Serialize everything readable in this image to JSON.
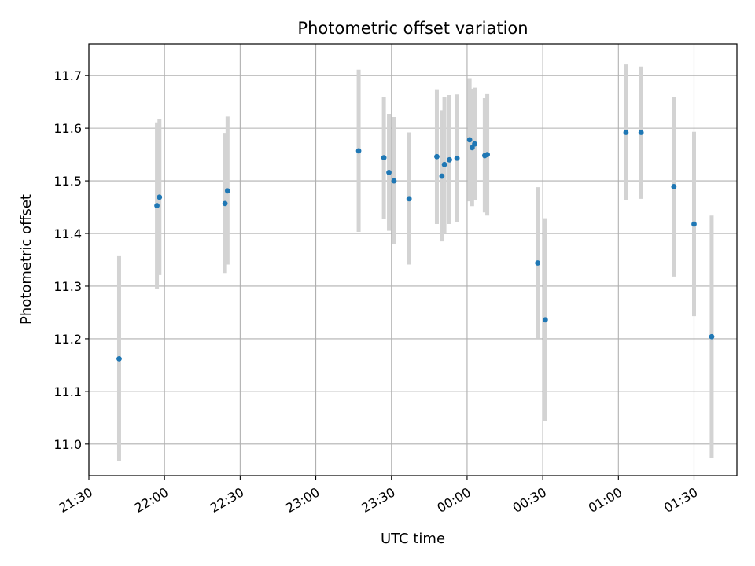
{
  "chart_data": {
    "type": "scatter",
    "title": "Photometric offset variation",
    "xlabel": "UTC time",
    "ylabel": "Photometric offset",
    "grid": true,
    "ylim": [
      10.94,
      11.76
    ],
    "xlim": [
      "21:30",
      "01:47"
    ],
    "x_ticks": [
      "21:30",
      "22:00",
      "22:30",
      "23:00",
      "23:30",
      "00:00",
      "00:30",
      "01:00",
      "01:30"
    ],
    "y_ticks": [
      11.0,
      11.1,
      11.2,
      11.3,
      11.4,
      11.5,
      11.6,
      11.7
    ],
    "y_tick_labels": [
      "11.0",
      "11.1",
      "11.2",
      "11.3",
      "11.4",
      "11.5",
      "11.6",
      "11.7"
    ],
    "colors": {
      "points": "#1f77b4",
      "errorbars": "#d3d3d3",
      "grid": "#b0b0b0"
    },
    "series": [
      {
        "points": [
          {
            "time": "21:42",
            "y": 11.162,
            "err_low": 10.967,
            "err_high": 11.357
          },
          {
            "time": "21:57",
            "y": 11.453,
            "err_low": 11.295,
            "err_high": 11.611
          },
          {
            "time": "21:58",
            "y": 11.469,
            "err_low": 11.321,
            "err_high": 11.618
          },
          {
            "time": "22:24",
            "y": 11.457,
            "err_low": 11.325,
            "err_high": 11.591
          },
          {
            "time": "22:25",
            "y": 11.481,
            "err_low": 11.341,
            "err_high": 11.622
          },
          {
            "time": "23:17",
            "y": 11.557,
            "err_low": 11.403,
            "err_high": 11.711
          },
          {
            "time": "23:27",
            "y": 11.544,
            "err_low": 11.428,
            "err_high": 11.659
          },
          {
            "time": "23:29",
            "y": 11.516,
            "err_low": 11.405,
            "err_high": 11.627
          },
          {
            "time": "23:31",
            "y": 11.5,
            "err_low": 11.38,
            "err_high": 11.621
          },
          {
            "time": "23:37",
            "y": 11.466,
            "err_low": 11.341,
            "err_high": 11.592
          },
          {
            "time": "23:48",
            "y": 11.546,
            "err_low": 11.418,
            "err_high": 11.674
          },
          {
            "time": "23:50",
            "y": 11.509,
            "err_low": 11.385,
            "err_high": 11.634
          },
          {
            "time": "23:51",
            "y": 11.531,
            "err_low": 11.401,
            "err_high": 11.66
          },
          {
            "time": "23:53",
            "y": 11.54,
            "err_low": 11.418,
            "err_high": 11.663
          },
          {
            "time": "23:56",
            "y": 11.543,
            "err_low": 11.422,
            "err_high": 11.664
          },
          {
            "time": "00:01",
            "y": 11.578,
            "err_low": 11.461,
            "err_high": 11.695
          },
          {
            "time": "00:02",
            "y": 11.563,
            "err_low": 11.452,
            "err_high": 11.675
          },
          {
            "time": "00:03",
            "y": 11.57,
            "err_low": 11.463,
            "err_high": 11.677
          },
          {
            "time": "00:07",
            "y": 11.548,
            "err_low": 11.44,
            "err_high": 11.657
          },
          {
            "time": "00:08",
            "y": 11.55,
            "err_low": 11.434,
            "err_high": 11.666
          },
          {
            "time": "00:28",
            "y": 11.344,
            "err_low": 11.2,
            "err_high": 11.488
          },
          {
            "time": "00:31",
            "y": 11.236,
            "err_low": 11.043,
            "err_high": 11.429
          },
          {
            "time": "01:03",
            "y": 11.592,
            "err_low": 11.463,
            "err_high": 11.721
          },
          {
            "time": "01:09",
            "y": 11.592,
            "err_low": 11.466,
            "err_high": 11.717
          },
          {
            "time": "01:22",
            "y": 11.489,
            "err_low": 11.318,
            "err_high": 11.66
          },
          {
            "time": "01:30",
            "y": 11.418,
            "err_low": 11.243,
            "err_high": 11.593
          },
          {
            "time": "01:37",
            "y": 11.204,
            "err_low": 10.973,
            "err_high": 11.434
          }
        ]
      }
    ]
  }
}
